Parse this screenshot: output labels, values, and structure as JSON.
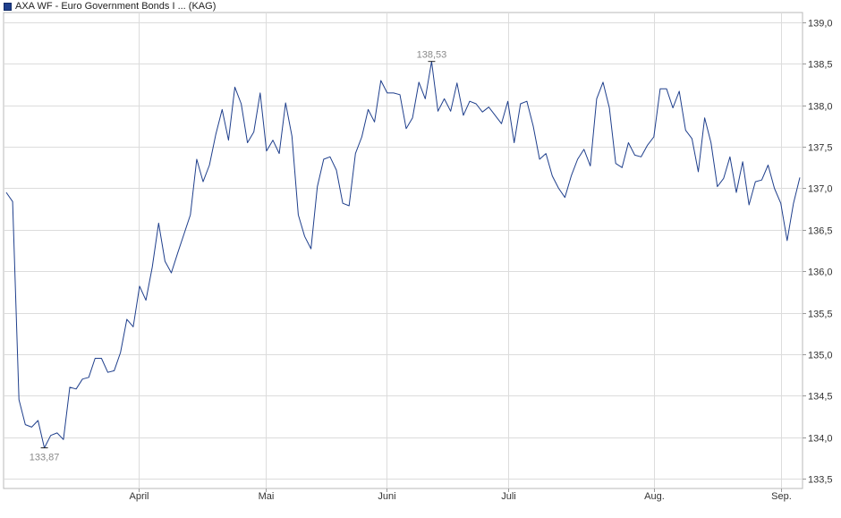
{
  "legend": {
    "series_label": "AXA WF - Euro Government Bonds I ... (KAG)",
    "color": "#1f3f8c"
  },
  "chart_data": {
    "type": "line",
    "title": "",
    "xlabel": "",
    "ylabel": "",
    "ylim": [
      133.38,
      139.12
    ],
    "grid": true,
    "legend_position": "top-left",
    "y_ticks": [
      "139,0",
      "138,5",
      "138,0",
      "137,5",
      "137,0",
      "136,5",
      "136,0",
      "135,5",
      "135,0",
      "134,5",
      "134,0",
      "133,5"
    ],
    "x_tick_labels": [
      "April",
      "Mai",
      "Juni",
      "Juli",
      "Aug.",
      "Sep."
    ],
    "annotations": {
      "min": {
        "label": "133,87",
        "value": 133.87
      },
      "max": {
        "label": "138,53",
        "value": 138.53
      }
    },
    "series": [
      {
        "color": "#1f3f8c",
        "values": [
          136.95,
          136.84,
          134.45,
          134.15,
          134.12,
          134.2,
          133.87,
          134.02,
          134.05,
          133.97,
          134.6,
          134.58,
          134.7,
          134.72,
          134.95,
          134.95,
          134.78,
          134.8,
          135.02,
          135.42,
          135.33,
          135.82,
          135.65,
          136.05,
          136.58,
          136.12,
          135.98,
          136.22,
          136.45,
          136.68,
          137.35,
          137.08,
          137.28,
          137.65,
          137.95,
          137.58,
          138.22,
          138.02,
          137.55,
          137.68,
          138.15,
          137.45,
          137.58,
          137.42,
          138.03,
          137.63,
          136.68,
          136.42,
          136.27,
          137.02,
          137.35,
          137.38,
          137.22,
          136.82,
          136.79,
          137.42,
          137.62,
          137.95,
          137.8,
          138.3,
          138.15,
          138.15,
          138.13,
          137.72,
          137.85,
          138.28,
          138.08,
          138.53,
          137.93,
          138.08,
          137.93,
          138.27,
          137.88,
          138.05,
          138.02,
          137.92,
          137.98,
          137.88,
          137.78,
          138.05,
          137.55,
          138.02,
          138.05,
          137.75,
          137.35,
          137.42,
          137.15,
          137.0,
          136.89,
          137.15,
          137.35,
          137.47,
          137.27,
          138.08,
          138.28,
          137.97,
          137.3,
          137.25,
          137.55,
          137.4,
          137.38,
          137.52,
          137.62,
          138.2,
          138.2,
          137.97,
          138.17,
          137.7,
          137.6,
          137.2,
          137.85,
          137.55,
          137.02,
          137.12,
          137.38,
          136.95,
          137.32,
          136.8,
          137.08,
          137.1,
          137.28,
          137.0,
          136.82,
          136.37,
          136.82,
          137.13
        ]
      }
    ]
  }
}
